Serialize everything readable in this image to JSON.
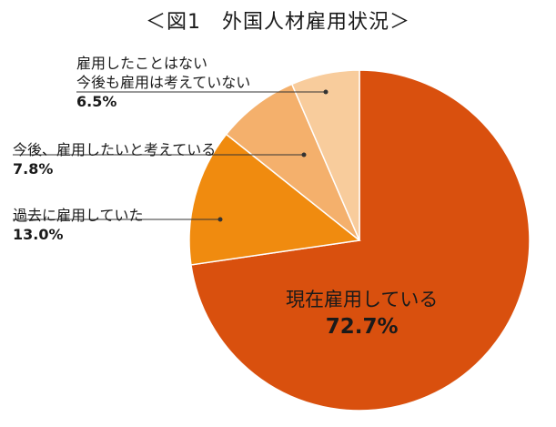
{
  "chart_data": {
    "type": "pie",
    "title": "＜図1　外国人材雇用状況＞",
    "slices": [
      {
        "label_lines": [
          "現在雇用している"
        ],
        "value": 72.7,
        "value_label": "72.7%",
        "color": "#d9500e"
      },
      {
        "label_lines": [
          "過去に雇用していた"
        ],
        "value": 13.0,
        "value_label": "13.0%",
        "color": "#f08b0f"
      },
      {
        "label_lines": [
          "今後、雇用したいと考えている"
        ],
        "value": 7.8,
        "value_label": "7.8%",
        "color": "#f4b06c"
      },
      {
        "label_lines": [
          "雇用したことはない",
          "今後も雇用は考えていない"
        ],
        "value": 6.5,
        "value_label": "6.5%",
        "color": "#f8cc9c"
      }
    ],
    "start": "12 o'clock",
    "direction": "clockwise",
    "legend": "none"
  }
}
